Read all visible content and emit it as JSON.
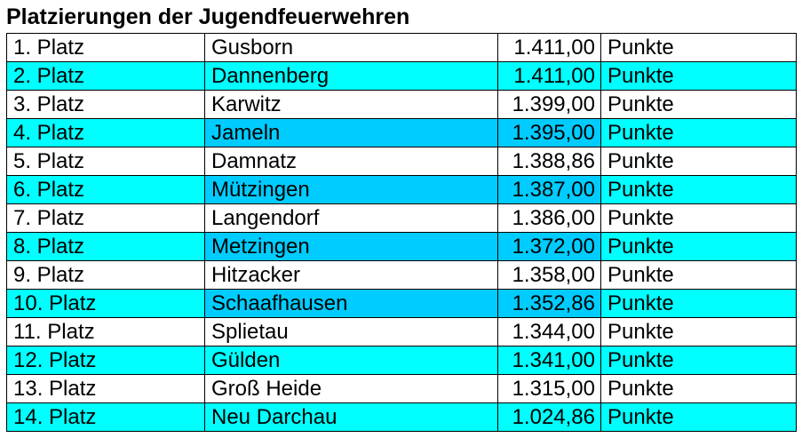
{
  "title": "Platzierungen der Jugendfeuerwehren",
  "colors": {
    "row_plain": "#ffffff",
    "row_highlight": "#00ffff",
    "cell_highlight_dark": "#00ccff",
    "border": "#000000"
  },
  "rows": [
    {
      "rank": "1. Platz",
      "team": "Gusborn",
      "score": "1.411,00",
      "unit": "Punkte",
      "bg": [
        "#ffffff",
        "#ffffff",
        "#ffffff",
        "#ffffff"
      ]
    },
    {
      "rank": "2. Platz",
      "team": "Dannenberg",
      "score": "1.411,00",
      "unit": "Punkte",
      "bg": [
        "#00ffff",
        "#00ffff",
        "#00ffff",
        "#00ffff"
      ]
    },
    {
      "rank": "3. Platz",
      "team": "Karwitz",
      "score": "1.399,00",
      "unit": "Punkte",
      "bg": [
        "#ffffff",
        "#ffffff",
        "#ffffff",
        "#ffffff"
      ]
    },
    {
      "rank": "4. Platz",
      "team": "Jameln",
      "score": "1.395,00",
      "unit": "Punkte",
      "bg": [
        "#00ffff",
        "#00ccff",
        "#00ccff",
        "#00ffff"
      ]
    },
    {
      "rank": "5. Platz",
      "team": "Damnatz",
      "score": "1.388,86",
      "unit": "Punkte",
      "bg": [
        "#ffffff",
        "#ffffff",
        "#ffffff",
        "#ffffff"
      ]
    },
    {
      "rank": "6. Platz",
      "team": "Mützingen",
      "score": "1.387,00",
      "unit": "Punkte",
      "bg": [
        "#00ffff",
        "#00ccff",
        "#00ccff",
        "#00ffff"
      ]
    },
    {
      "rank": "7. Platz",
      "team": "Langendorf",
      "score": "1.386,00",
      "unit": "Punkte",
      "bg": [
        "#ffffff",
        "#ffffff",
        "#ffffff",
        "#ffffff"
      ]
    },
    {
      "rank": "8. Platz",
      "team": "Metzingen",
      "score": "1.372,00",
      "unit": "Punkte",
      "bg": [
        "#00ffff",
        "#00ccff",
        "#00ccff",
        "#00ffff"
      ]
    },
    {
      "rank": "9. Platz",
      "team": "Hitzacker",
      "score": "1.358,00",
      "unit": "Punkte",
      "bg": [
        "#ffffff",
        "#ffffff",
        "#ffffff",
        "#ffffff"
      ]
    },
    {
      "rank": "10. Platz",
      "team": "Schaafhausen",
      "score": "1.352,86",
      "unit": "Punkte",
      "bg": [
        "#00ffff",
        "#00ccff",
        "#00ccff",
        "#00ffff"
      ]
    },
    {
      "rank": "11. Platz",
      "team": "Splietau",
      "score": "1.344,00",
      "unit": "Punkte",
      "bg": [
        "#ffffff",
        "#ffffff",
        "#ffffff",
        "#ffffff"
      ]
    },
    {
      "rank": "12. Platz",
      "team": "Gülden",
      "score": "1.341,00",
      "unit": "Punkte",
      "bg": [
        "#00ffff",
        "#00ffff",
        "#00ffff",
        "#00ffff"
      ]
    },
    {
      "rank": "13. Platz",
      "team": "Groß Heide",
      "score": "1.315,00",
      "unit": "Punkte",
      "bg": [
        "#ffffff",
        "#ffffff",
        "#ffffff",
        "#ffffff"
      ]
    },
    {
      "rank": "14. Platz",
      "team": "Neu Darchau",
      "score": "1.024,86",
      "unit": "Punkte",
      "bg": [
        "#00ffff",
        "#00ffff",
        "#00ffff",
        "#00ffff"
      ]
    }
  ]
}
